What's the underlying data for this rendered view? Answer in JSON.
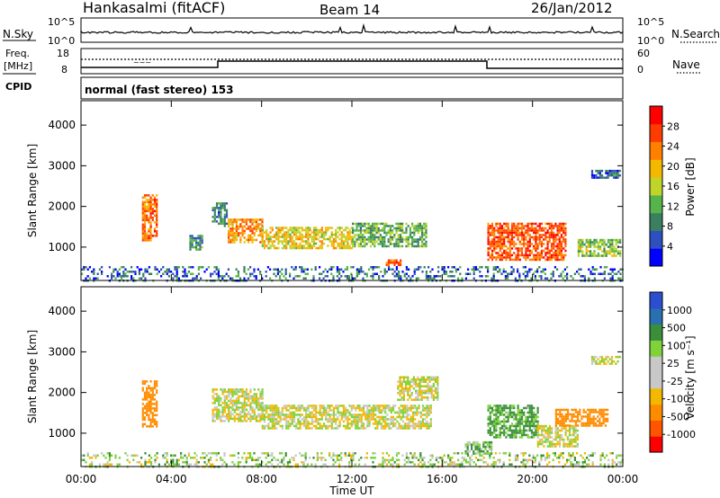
{
  "header": {
    "station": "Hankasalmi (fitACF)",
    "beam": "Beam 14",
    "date": "26/Jan/2012"
  },
  "noise_panel": {
    "left_label": "N.Sky",
    "right_label": "N.Search",
    "left_ticks": [
      "10^5",
      "10^0"
    ],
    "right_ticks": [
      "10^5",
      "10^0"
    ]
  },
  "freq_panel": {
    "left_label_top": "Freq.",
    "left_label_unit": "[MHz]",
    "left_ticks": [
      "18",
      "8"
    ],
    "right_label": "Nave",
    "right_ticks": [
      "60",
      "0"
    ]
  },
  "cpid": {
    "label": "CPID",
    "value": "normal (fast stereo) 153"
  },
  "colors": {
    "power": [
      "#0000ff",
      "#2d4fc0",
      "#3a7f5f",
      "#55b44a",
      "#bfd52a",
      "#f5b800",
      "#ff8000",
      "#ff3c00",
      "#ff0000"
    ],
    "velocity": [
      "#ff0000",
      "#ff5500",
      "#ff8c00",
      "#f5b800",
      "#c8c8c8",
      "#c8c8c8",
      "#7fd23a",
      "#3a8f3a",
      "#2a6fb0",
      "#2a4fd0"
    ],
    "ground_scatter": "#c8c8c8"
  },
  "chart_data": [
    {
      "type": "heatmap",
      "title": "Power",
      "xlabel": "Time UT",
      "ylabel": "Slant Range [km]",
      "x_ticks": [
        "00:00",
        "04:00",
        "08:00",
        "12:00",
        "16:00",
        "20:00",
        "00:00"
      ],
      "y_ticks": [
        "1000",
        "2000",
        "3000",
        "4000"
      ],
      "xlim": [
        0,
        24
      ],
      "ylim": [
        180,
        4600
      ],
      "colorbar": {
        "label": "Power [dB]",
        "ticks": [
          "4",
          "8",
          "12",
          "16",
          "20",
          "24",
          "28"
        ],
        "range": [
          0,
          32
        ]
      },
      "regions": [
        {
          "t0": 2.7,
          "t1": 3.4,
          "r0": 1150,
          "r1": 2300,
          "level": 24
        },
        {
          "t0": 4.8,
          "t1": 5.4,
          "r0": 950,
          "r1": 1300,
          "level": 10
        },
        {
          "t0": 5.8,
          "t1": 6.5,
          "r0": 1500,
          "r1": 2100,
          "level": 8
        },
        {
          "t0": 6.5,
          "t1": 8.0,
          "r0": 1100,
          "r1": 1700,
          "level": 22
        },
        {
          "t0": 8.0,
          "t1": 12.0,
          "r0": 1000,
          "r1": 1500,
          "level": 18
        },
        {
          "t0": 12.0,
          "t1": 15.3,
          "r0": 1000,
          "r1": 1600,
          "level": 12
        },
        {
          "t0": 13.5,
          "t1": 14.2,
          "r0": 560,
          "r1": 700,
          "level": 24
        },
        {
          "t0": 18.0,
          "t1": 21.5,
          "r0": 700,
          "r1": 1600,
          "level": 26
        },
        {
          "t0": 22.0,
          "t1": 23.9,
          "r0": 800,
          "r1": 1200,
          "level": 14
        },
        {
          "t0": 22.6,
          "t1": 23.9,
          "r0": 2700,
          "r1": 2900,
          "level": 6
        }
      ]
    },
    {
      "type": "heatmap",
      "title": "Velocity",
      "xlabel": "Time UT",
      "ylabel": "Slant Range [km]",
      "x_ticks": [
        "00:00",
        "04:00",
        "08:00",
        "12:00",
        "16:00",
        "20:00",
        "00:00"
      ],
      "y_ticks": [
        "1000",
        "2000",
        "3000",
        "4000"
      ],
      "xlim": [
        0,
        24
      ],
      "ylim": [
        180,
        4600
      ],
      "colorbar": {
        "label": "Velocity [m s⁻¹]",
        "ticks": [
          "1000",
          "500",
          "100",
          "25",
          "-25",
          "-100",
          "-500",
          "-1000"
        ]
      },
      "regions": [
        {
          "t0": 2.7,
          "t1": 3.4,
          "r0": 1150,
          "r1": 2300,
          "vel": -300
        },
        {
          "t0": 5.8,
          "t1": 8.0,
          "r0": 1300,
          "r1": 2100,
          "vel": 0
        },
        {
          "t0": 8.0,
          "t1": 15.5,
          "r0": 1100,
          "r1": 1700,
          "vel": 0
        },
        {
          "t0": 14.0,
          "t1": 15.8,
          "r0": 1800,
          "r1": 2400,
          "vel": 0
        },
        {
          "t0": 17.0,
          "t1": 18.2,
          "r0": 500,
          "r1": 800,
          "vel": 80
        },
        {
          "t0": 18.0,
          "t1": 20.2,
          "r0": 900,
          "r1": 1700,
          "vel": 120
        },
        {
          "t0": 20.2,
          "t1": 22.0,
          "r0": 700,
          "r1": 1200,
          "vel": 0
        },
        {
          "t0": 21.0,
          "t1": 23.3,
          "r0": 1200,
          "r1": 1600,
          "vel": -300
        },
        {
          "t0": 22.6,
          "t1": 23.9,
          "r0": 2700,
          "r1": 2900,
          "vel": 0
        }
      ]
    }
  ]
}
